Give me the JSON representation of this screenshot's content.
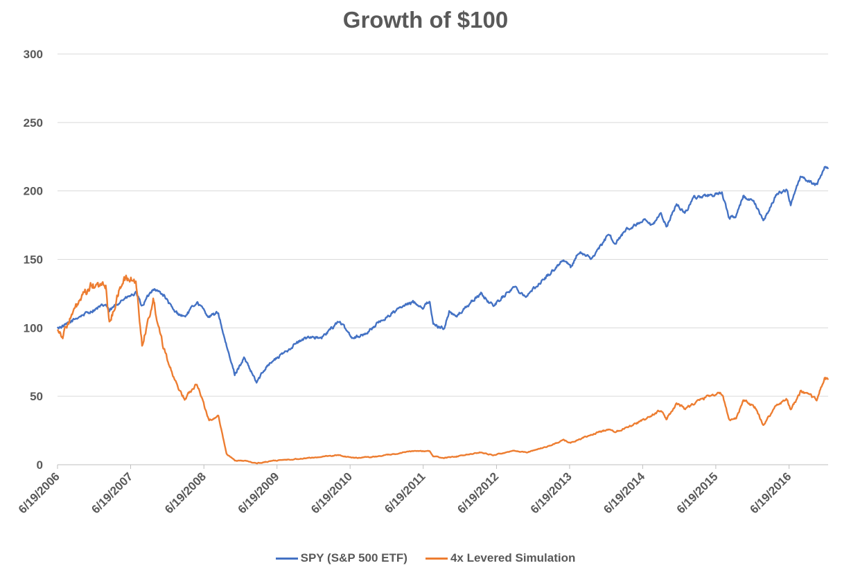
{
  "chart_data": {
    "type": "line",
    "title": "Growth of $100",
    "xlabel": "",
    "ylabel": "",
    "ylim": [
      0,
      300
    ],
    "y_ticks": [
      "0",
      "50",
      "100",
      "150",
      "200",
      "250",
      "300"
    ],
    "x_range": [
      "6/19/2006",
      "12/31/2016"
    ],
    "x_tick_labels": [
      "6/19/2006",
      "6/19/2007",
      "6/19/2008",
      "6/19/2009",
      "6/19/2010",
      "6/19/2011",
      "6/19/2012",
      "6/19/2013",
      "6/19/2014",
      "6/19/2015",
      "6/19/2016"
    ],
    "grid": "horizontal",
    "legend_position": "bottom",
    "series": [
      {
        "name": "SPY (S&P 500 ETF)",
        "color": "#4472C4",
        "points": [
          [
            "2006-06-19",
            100
          ],
          [
            "2006-08-01",
            102
          ],
          [
            "2006-10-01",
            108
          ],
          [
            "2006-12-01",
            112
          ],
          [
            "2007-02-15",
            117
          ],
          [
            "2007-03-05",
            112
          ],
          [
            "2007-05-01",
            120
          ],
          [
            "2007-07-15",
            125
          ],
          [
            "2007-08-15",
            116
          ],
          [
            "2007-10-10",
            129
          ],
          [
            "2007-12-01",
            124
          ],
          [
            "2008-01-22",
            112
          ],
          [
            "2008-03-15",
            108
          ],
          [
            "2008-05-15",
            119
          ],
          [
            "2008-07-15",
            108
          ],
          [
            "2008-08-30",
            111
          ],
          [
            "2008-10-10",
            86
          ],
          [
            "2008-11-20",
            66
          ],
          [
            "2009-01-05",
            78
          ],
          [
            "2009-03-09",
            60
          ],
          [
            "2009-05-01",
            73
          ],
          [
            "2009-07-01",
            79
          ],
          [
            "2009-09-15",
            88
          ],
          [
            "2009-12-01",
            94
          ],
          [
            "2010-01-25",
            92
          ],
          [
            "2010-04-23",
            105
          ],
          [
            "2010-07-01",
            93
          ],
          [
            "2010-08-30",
            95
          ],
          [
            "2010-11-01",
            103
          ],
          [
            "2011-02-18",
            114
          ],
          [
            "2011-04-29",
            119
          ],
          [
            "2011-06-20",
            115
          ],
          [
            "2011-07-22",
            120
          ],
          [
            "2011-08-08",
            102
          ],
          [
            "2011-10-03",
            100
          ],
          [
            "2011-10-27",
            112
          ],
          [
            "2011-12-01",
            108
          ],
          [
            "2012-02-15",
            119
          ],
          [
            "2012-04-02",
            125
          ],
          [
            "2012-06-01",
            116
          ],
          [
            "2012-09-14",
            130
          ],
          [
            "2012-11-15",
            123
          ],
          [
            "2013-01-15",
            132
          ],
          [
            "2013-03-15",
            140
          ],
          [
            "2013-05-20",
            150
          ],
          [
            "2013-06-24",
            144
          ],
          [
            "2013-08-01",
            155
          ],
          [
            "2013-10-08",
            151
          ],
          [
            "2013-12-31",
            168
          ],
          [
            "2014-02-03",
            162
          ],
          [
            "2014-04-01",
            172
          ],
          [
            "2014-06-30",
            178
          ],
          [
            "2014-08-07",
            174
          ],
          [
            "2014-09-18",
            184
          ],
          [
            "2014-10-15",
            174
          ],
          [
            "2014-12-05",
            190
          ],
          [
            "2015-01-15",
            184
          ],
          [
            "2015-03-02",
            195
          ],
          [
            "2015-05-20",
            197
          ],
          [
            "2015-07-20",
            198
          ],
          [
            "2015-08-25",
            180
          ],
          [
            "2015-09-29",
            182
          ],
          [
            "2015-11-03",
            196
          ],
          [
            "2015-12-31",
            191
          ],
          [
            "2016-02-11",
            178
          ],
          [
            "2016-04-20",
            198
          ],
          [
            "2016-06-08",
            201
          ],
          [
            "2016-06-27",
            190
          ],
          [
            "2016-08-15",
            210
          ],
          [
            "2016-11-04",
            204
          ],
          [
            "2016-12-13",
            218
          ],
          [
            "2016-12-31",
            216
          ]
        ]
      },
      {
        "name": "4x Levered Simulation",
        "color": "#ED7D31",
        "points": [
          [
            "2006-06-19",
            100
          ],
          [
            "2006-07-15",
            94
          ],
          [
            "2006-08-01",
            101
          ],
          [
            "2006-10-01",
            118
          ],
          [
            "2006-12-01",
            130
          ],
          [
            "2007-02-15",
            131
          ],
          [
            "2007-03-05",
            103
          ],
          [
            "2007-04-15",
            123
          ],
          [
            "2007-05-15",
            136
          ],
          [
            "2007-07-15",
            134
          ],
          [
            "2007-08-15",
            88
          ],
          [
            "2007-10-10",
            120
          ],
          [
            "2007-11-26",
            89
          ],
          [
            "2008-01-22",
            62
          ],
          [
            "2008-03-15",
            48
          ],
          [
            "2008-05-15",
            60
          ],
          [
            "2008-07-15",
            32
          ],
          [
            "2008-08-30",
            36
          ],
          [
            "2008-10-10",
            8
          ],
          [
            "2008-11-20",
            3
          ],
          [
            "2009-01-05",
            3
          ],
          [
            "2009-03-09",
            1
          ],
          [
            "2009-06-01",
            3
          ],
          [
            "2009-09-15",
            4
          ],
          [
            "2009-12-01",
            5
          ],
          [
            "2010-04-23",
            7
          ],
          [
            "2010-07-01",
            5
          ],
          [
            "2010-11-01",
            6
          ],
          [
            "2011-04-29",
            10
          ],
          [
            "2011-07-22",
            10
          ],
          [
            "2011-08-08",
            6
          ],
          [
            "2011-10-03",
            5
          ],
          [
            "2011-12-01",
            6
          ],
          [
            "2012-04-02",
            9
          ],
          [
            "2012-06-01",
            7
          ],
          [
            "2012-09-14",
            10
          ],
          [
            "2012-11-15",
            9
          ],
          [
            "2013-03-15",
            14
          ],
          [
            "2013-05-20",
            18
          ],
          [
            "2013-06-24",
            16
          ],
          [
            "2013-10-08",
            22
          ],
          [
            "2013-12-31",
            26
          ],
          [
            "2014-02-03",
            24
          ],
          [
            "2014-06-30",
            33
          ],
          [
            "2014-09-18",
            40
          ],
          [
            "2014-10-15",
            33
          ],
          [
            "2014-12-05",
            45
          ],
          [
            "2015-01-15",
            41
          ],
          [
            "2015-05-20",
            51
          ],
          [
            "2015-07-20",
            52
          ],
          [
            "2015-08-25",
            33
          ],
          [
            "2015-09-29",
            34
          ],
          [
            "2015-11-03",
            47
          ],
          [
            "2015-12-31",
            42
          ],
          [
            "2016-02-11",
            29
          ],
          [
            "2016-04-20",
            44
          ],
          [
            "2016-06-08",
            48
          ],
          [
            "2016-06-27",
            40
          ],
          [
            "2016-08-15",
            53
          ],
          [
            "2016-11-04",
            48
          ],
          [
            "2016-12-13",
            63
          ],
          [
            "2016-12-31",
            62
          ]
        ]
      }
    ]
  }
}
